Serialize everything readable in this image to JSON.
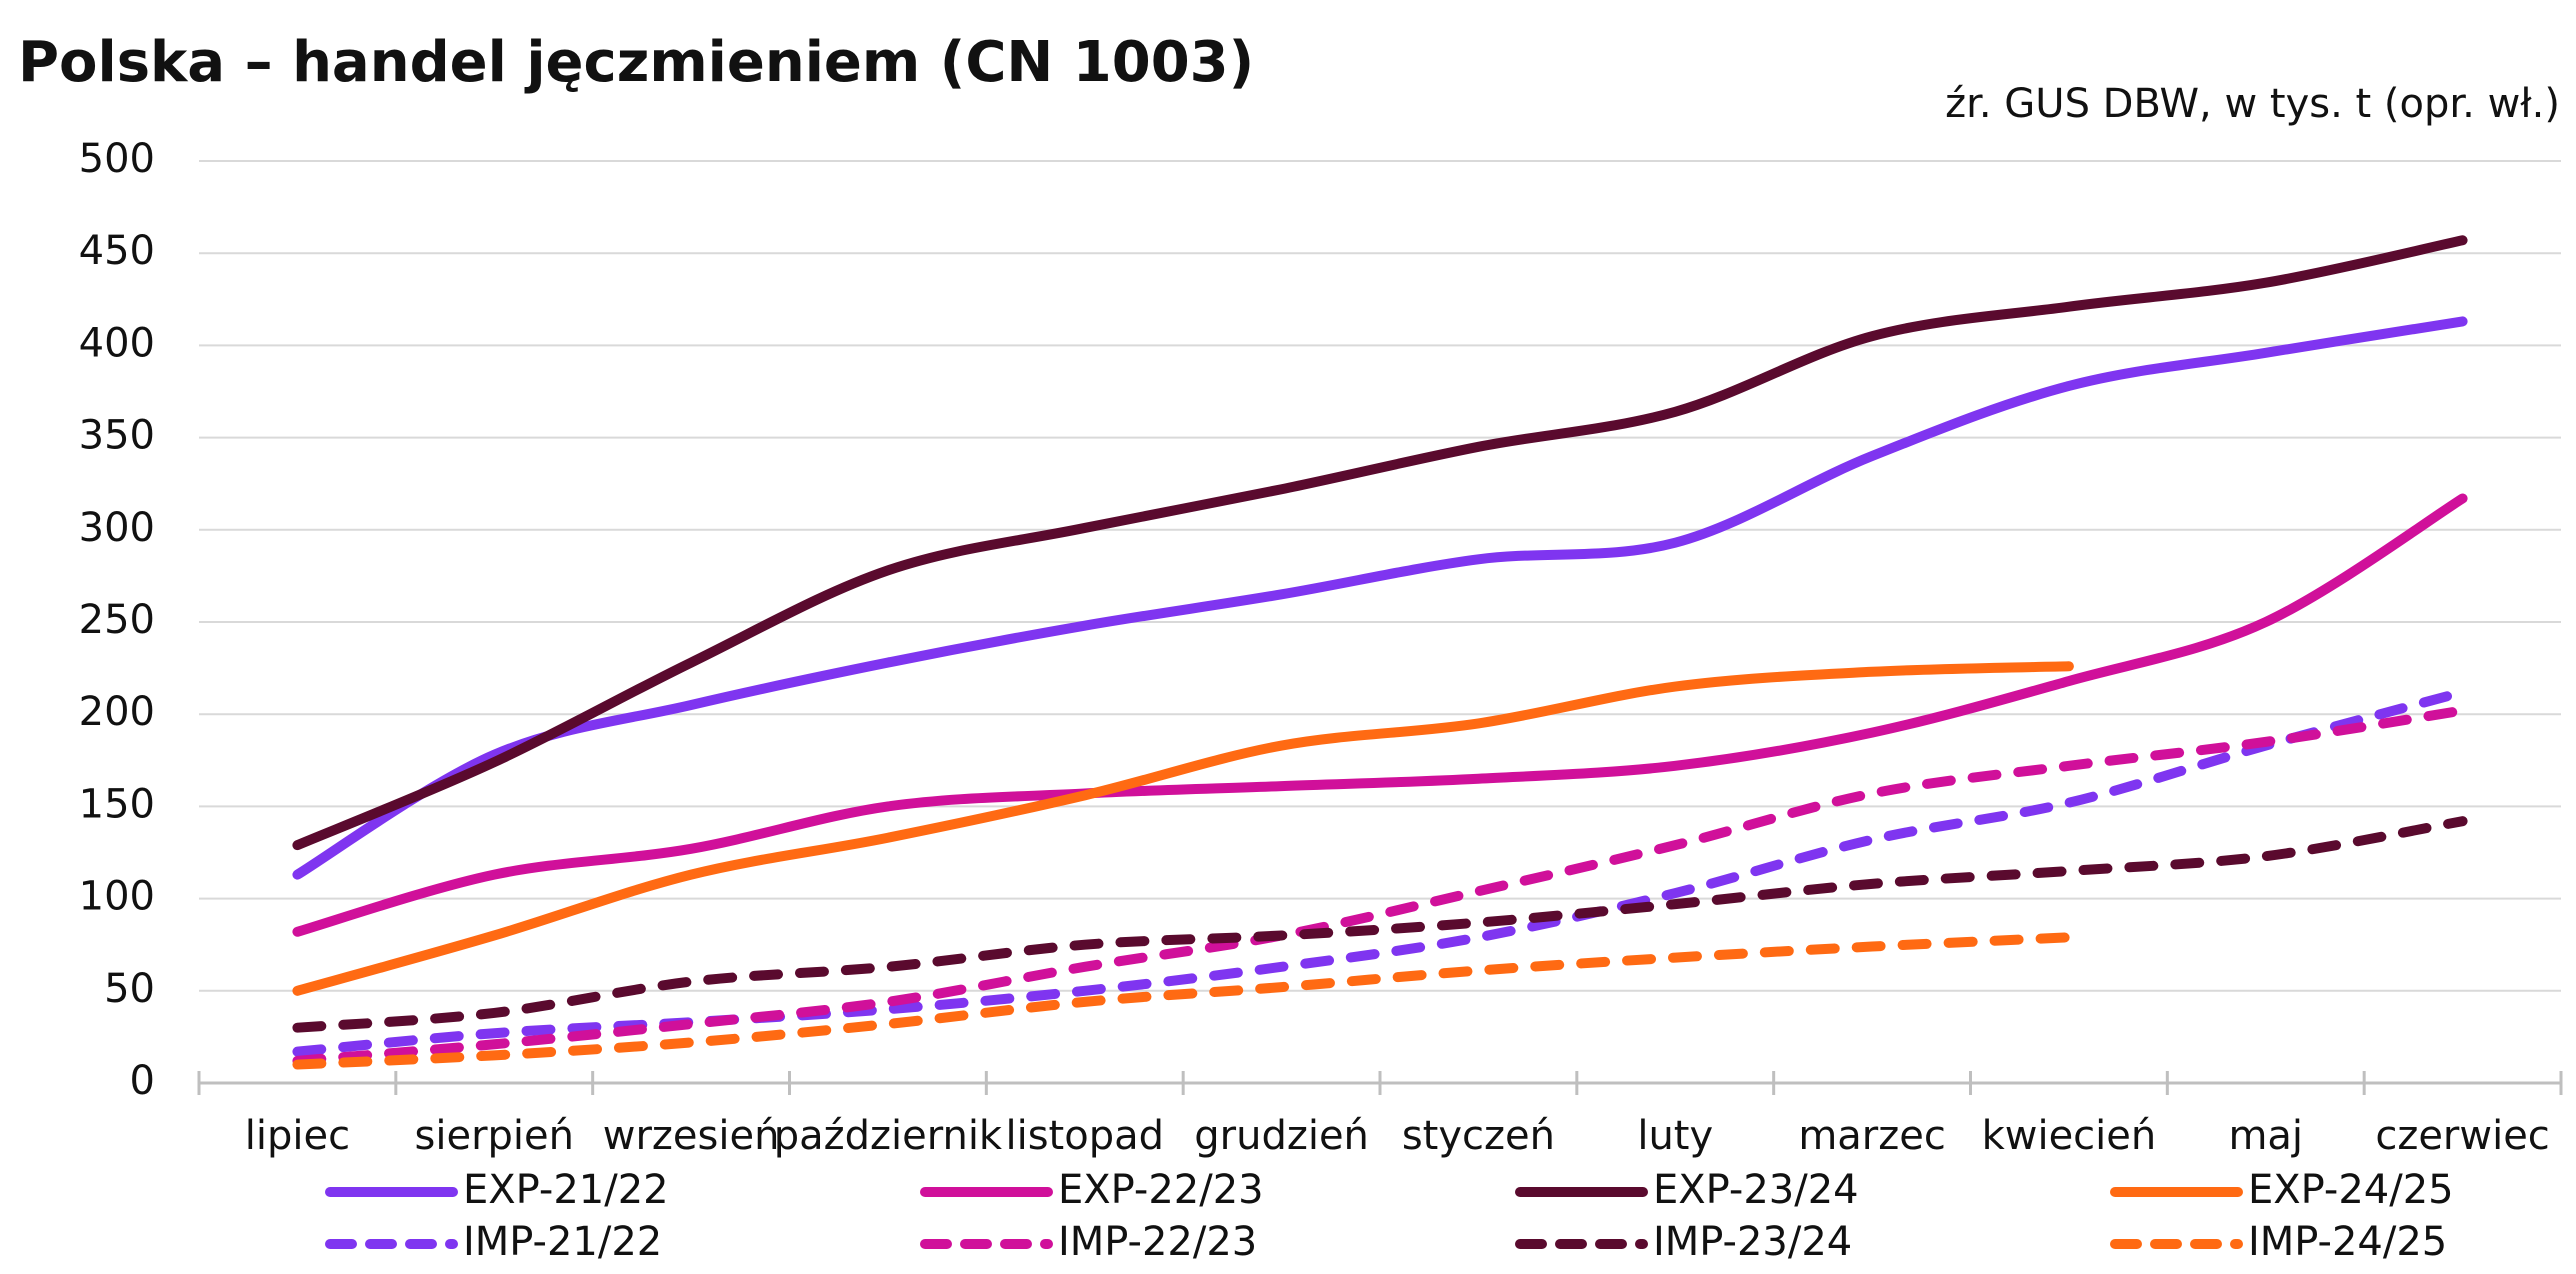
{
  "chart_data": {
    "type": "line",
    "title": "Polska – handel jęczmieniem (CN 1003)",
    "subtitle": "źr. GUS DBW, w tys. t (opr. wł.)",
    "categories": [
      "lipiec",
      "sierpień",
      "wrzesień",
      "październik",
      "listopad",
      "grudzień",
      "styczeń",
      "luty",
      "marzec",
      "kwiecień",
      "maj",
      "czerwiec"
    ],
    "ylim": [
      0,
      500
    ],
    "yticks": [
      0,
      50,
      100,
      150,
      200,
      250,
      300,
      350,
      400,
      450,
      500
    ],
    "grid": true,
    "legend": "bottom",
    "series": [
      {
        "name": "EXP-21/22",
        "color": "#7f35f0",
        "dashed": false,
        "values": [
          113,
          178,
          205,
          228,
          248,
          265,
          284,
          293,
          340,
          378,
          396,
          413
        ]
      },
      {
        "name": "EXP-22/23",
        "color": "#d0109a",
        "dashed": false,
        "values": [
          82,
          113,
          127,
          150,
          157,
          161,
          165,
          172,
          190,
          218,
          250,
          317
        ]
      },
      {
        "name": "EXP-23/24",
        "color": "#5a0a2e",
        "dashed": false,
        "values": [
          129,
          174,
          228,
          278,
          301,
          322,
          345,
          364,
          405,
          421,
          434,
          457
        ]
      },
      {
        "name": "EXP-24/25",
        "color": "#ff6a13",
        "dashed": false,
        "values": [
          50,
          80,
          113,
          133,
          156,
          183,
          195,
          215,
          223,
          226,
          null,
          null
        ]
      },
      {
        "name": "IMP-21/22",
        "color": "#7f35f0",
        "dashed": true,
        "values": [
          17,
          27,
          33,
          40,
          50,
          63,
          79,
          103,
          132,
          152,
          183,
          212
        ]
      },
      {
        "name": "IMP-22/23",
        "color": "#d0109a",
        "dashed": true,
        "values": [
          12,
          21,
          32,
          44,
          63,
          80,
          104,
          129,
          157,
          172,
          185,
          202
        ]
      },
      {
        "name": "IMP-23/24",
        "color": "#5a0a2e",
        "dashed": true,
        "values": [
          30,
          38,
          55,
          63,
          75,
          80,
          87,
          97,
          108,
          115,
          123,
          142
        ]
      },
      {
        "name": "IMP-24/25",
        "color": "#ff6a13",
        "dashed": true,
        "values": [
          10,
          15,
          22,
          32,
          44,
          52,
          61,
          68,
          74,
          79,
          null,
          null
        ]
      }
    ]
  }
}
